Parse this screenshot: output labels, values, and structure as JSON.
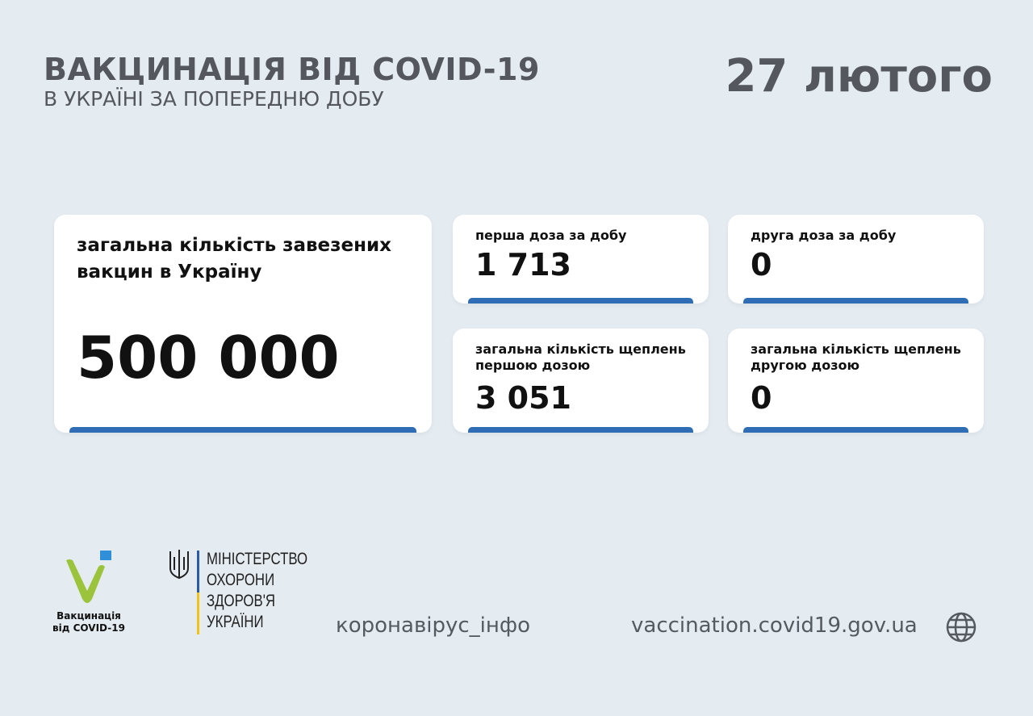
{
  "header": {
    "title": "ВАКЦИНАЦІЯ ВІД COVID-19",
    "subtitle": "В УКРАЇНІ ЗА ПОПЕРЕДНЮ ДОБУ",
    "date": "27 лютого"
  },
  "cards": [
    {
      "label": "загальна кількість завезених вакцин в Україну",
      "value": "500 000"
    },
    {
      "label": "перша доза за добу",
      "value": "1 713"
    },
    {
      "label": "друга доза за добу",
      "value": "0"
    },
    {
      "label": "загальна кількість щеплень першою дозою",
      "value": "3 051"
    },
    {
      "label": "загальна кількість щеплень другою дозою",
      "value": "0"
    }
  ],
  "footer": {
    "logo_caption_1": "Вакцинація",
    "logo_caption_2": "від COVID-19",
    "ministry": [
      "МІНІСТЕРСТВО",
      "ОХОРОНИ",
      "ЗДОРОВ'Я",
      "УКРАЇНИ"
    ],
    "hashtag": "коронавірус_інфо",
    "website": "vaccination.covid19.gov.ua",
    "globe_icon": "globe-icon"
  },
  "colors": {
    "accent": "#2f6db5",
    "background": "#e4ebf1",
    "logo_green": "#9bc43c",
    "logo_blue": "#2f8fd8"
  }
}
